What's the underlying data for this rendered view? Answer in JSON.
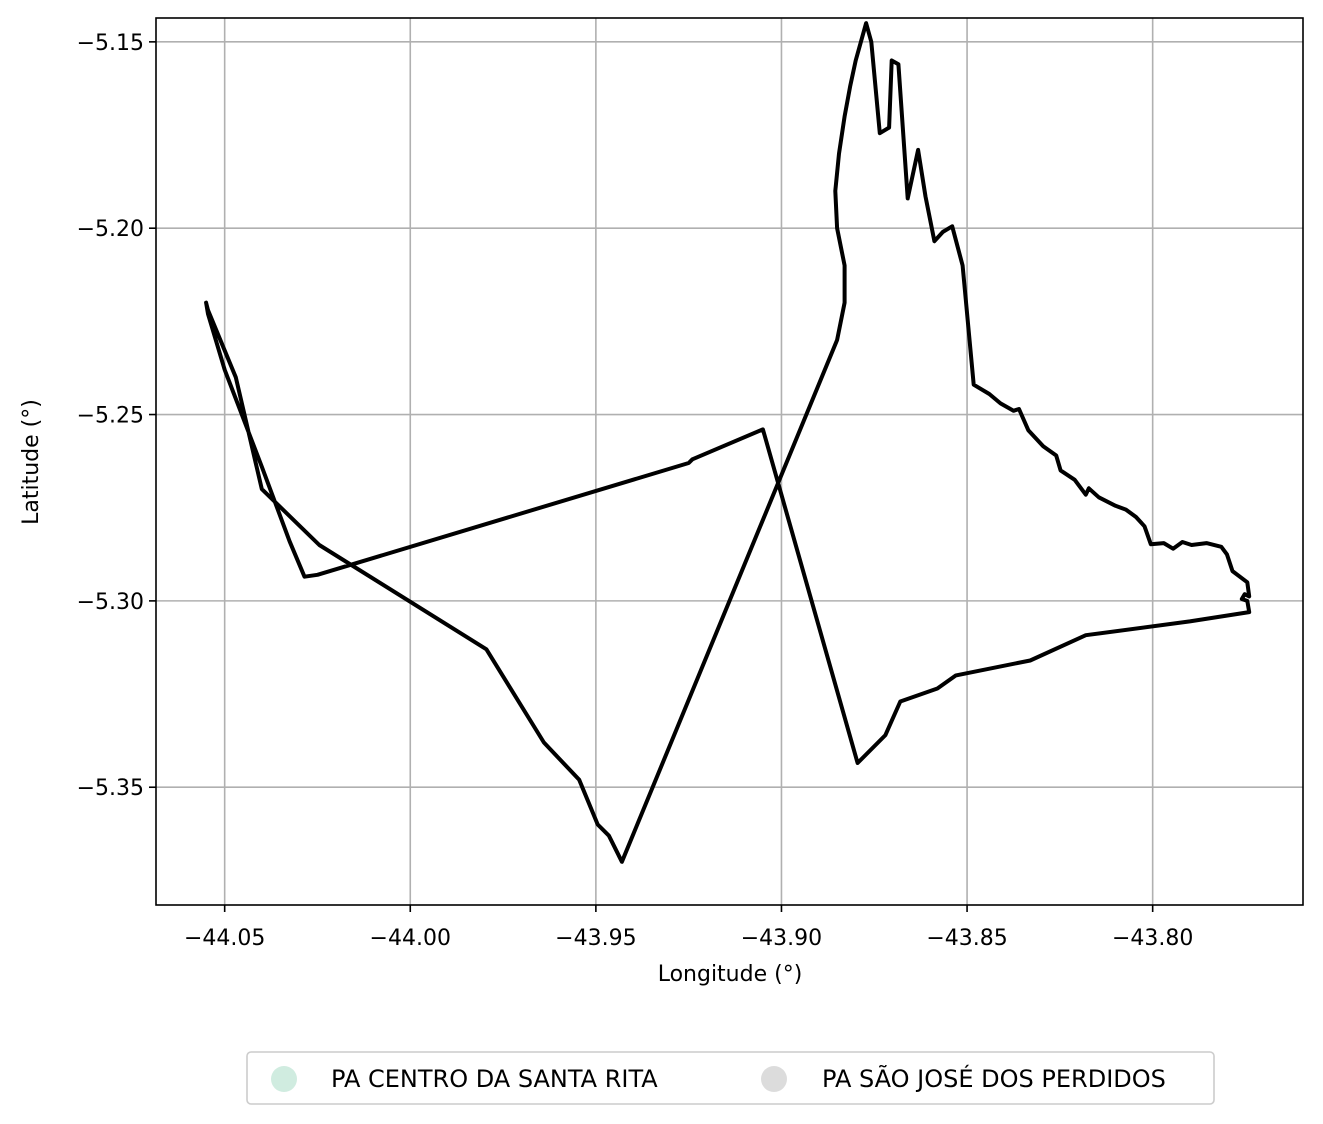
{
  "chart_data": {
    "type": "line",
    "title": "",
    "xlabel": "Longitude (°)",
    "ylabel": "Latitude (°)",
    "xlim": [
      -44.0685,
      -43.7595
    ],
    "ylim": [
      -5.3816,
      -5.1436
    ],
    "grid": true,
    "xticks": [
      -44.05,
      -44.0,
      -43.95,
      -43.9,
      -43.85,
      -43.8
    ],
    "xtick_labels": [
      "−44.05",
      "−44.00",
      "−43.95",
      "−43.90",
      "−43.85",
      "−43.80"
    ],
    "yticks": [
      -5.15,
      -5.2,
      -5.25,
      -5.3,
      -5.35
    ],
    "ytick_labels": [
      "−5.15",
      "−5.20",
      "−5.25",
      "−5.30",
      "−5.35"
    ],
    "legend_position": "bottom-center, below chart",
    "series": [
      {
        "outline_color": "#000000",
        "x": [
          -44.055,
          -44.0545,
          -44.05,
          -44.04,
          -44.0325,
          -44.0285,
          -44.025,
          -43.925,
          -43.924,
          -43.905,
          -43.8795,
          -43.872,
          -43.868,
          -43.858,
          -43.853,
          -43.833,
          -43.818,
          -43.79,
          -43.774,
          -43.7745,
          -43.776,
          -43.7752,
          -43.774,
          -43.7745,
          -43.7785,
          -43.78,
          -43.7815,
          -43.7855,
          -43.7895,
          -43.792,
          -43.7945,
          -43.797,
          -43.8005,
          -43.8022,
          -43.8045,
          -43.8072,
          -43.81,
          -43.8145,
          -43.8172,
          -43.818,
          -43.821,
          -43.8248,
          -43.826,
          -43.8295,
          -43.8335,
          -43.836,
          -43.8375,
          -43.841,
          -43.844,
          -43.8482,
          -43.8512,
          -43.854,
          -43.8565,
          -43.8588,
          -43.8612,
          -43.8632,
          -43.866,
          -43.8685,
          -43.8703,
          -43.871,
          -43.8735,
          -43.8758,
          -43.8772,
          -43.88,
          -43.8815,
          -43.883,
          -43.8845,
          -43.8855,
          -43.885,
          -43.883,
          -43.883,
          -43.885,
          -43.943,
          -43.9465,
          -43.9495,
          -43.9545,
          -43.964,
          -43.9795,
          -44.0245,
          -44.04,
          -44.047,
          -44.0545,
          -44.055
        ],
        "y": [
          -5.22,
          -5.223,
          -5.238,
          -5.264,
          -5.284,
          -5.2935,
          -5.293,
          -5.263,
          -5.262,
          -5.254,
          -5.3435,
          -5.336,
          -5.327,
          -5.3235,
          -5.32,
          -5.316,
          -5.3092,
          -5.3055,
          -5.303,
          -5.3,
          -5.2995,
          -5.2982,
          -5.2988,
          -5.295,
          -5.292,
          -5.2875,
          -5.2855,
          -5.2845,
          -5.285,
          -5.2842,
          -5.286,
          -5.2845,
          -5.2848,
          -5.28,
          -5.2775,
          -5.2755,
          -5.2745,
          -5.2722,
          -5.2698,
          -5.2715,
          -5.2675,
          -5.265,
          -5.261,
          -5.2585,
          -5.2542,
          -5.2485,
          -5.249,
          -5.247,
          -5.2445,
          -5.242,
          -5.21,
          -5.1995,
          -5.201,
          -5.2035,
          -5.1915,
          -5.179,
          -5.192,
          -5.156,
          -5.155,
          -5.173,
          -5.1745,
          -5.15,
          -5.145,
          -5.155,
          -5.162,
          -5.17,
          -5.18,
          -5.19,
          -5.2,
          -5.21,
          -5.22,
          -5.23,
          -5.37,
          -5.363,
          -5.36,
          -5.348,
          -5.338,
          -5.313,
          -5.285,
          -5.27,
          -5.24,
          -5.222,
          -5.22
        ]
      }
    ],
    "legend": [
      {
        "label": "PA CENTRO DA SANTA RITA",
        "color": "#d0ece0"
      },
      {
        "label": "PA SÃO JOSÉ DOS PERDIDOS",
        "color": "#dcdcdc"
      }
    ],
    "colors": {
      "background": "#ffffff",
      "grid": "#b0b0b0",
      "axes": "#000000",
      "outline": "#000000",
      "legend_border": "#cccccc"
    }
  }
}
